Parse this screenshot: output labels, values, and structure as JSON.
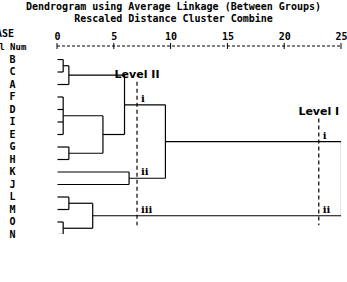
{
  "chart_data": {
    "type": "dendrogram",
    "title": "Dendrogram using Average Linkage (Between Groups)",
    "subtitle": "Rescaled Distance Cluster Combine",
    "case_header": "CASE",
    "label_header": "Label Num",
    "xlim": [
      0,
      25
    ],
    "xticks": [
      0,
      5,
      10,
      15,
      20,
      25
    ],
    "color": "#000000",
    "tree": {
      "height": 25,
      "children": [
        {
          "height": 9.5,
          "children": [
            {
              "height": 5.9,
              "children": [
                {
                  "height": 1,
                  "children": [
                    {
                      "height": 0.5,
                      "children": [
                        "B",
                        "C"
                      ]
                    },
                    "A"
                  ]
                },
                {
                  "height": 4,
                  "children": [
                    {
                      "height": 0.5,
                      "children": [
                        "F",
                        "D",
                        "I",
                        "E"
                      ]
                    },
                    {
                      "height": 1,
                      "children": [
                        "G",
                        "H"
                      ]
                    }
                  ]
                }
              ]
            },
            {
              "height": 6.3,
              "children": [
                "K",
                "J"
              ]
            }
          ]
        },
        {
          "height": 3.1,
          "children": [
            {
              "height": 1,
              "children": [
                "L",
                "M"
              ]
            },
            {
              "height": 0.5,
              "children": [
                "O",
                "N"
              ]
            }
          ]
        }
      ]
    },
    "cut_levels": [
      {
        "label": "Level II",
        "value": 7,
        "clusters": [
          "i",
          "ii",
          "iii"
        ]
      },
      {
        "label": "Level I",
        "value": 23,
        "clusters": [
          "i",
          "ii"
        ]
      }
    ]
  }
}
